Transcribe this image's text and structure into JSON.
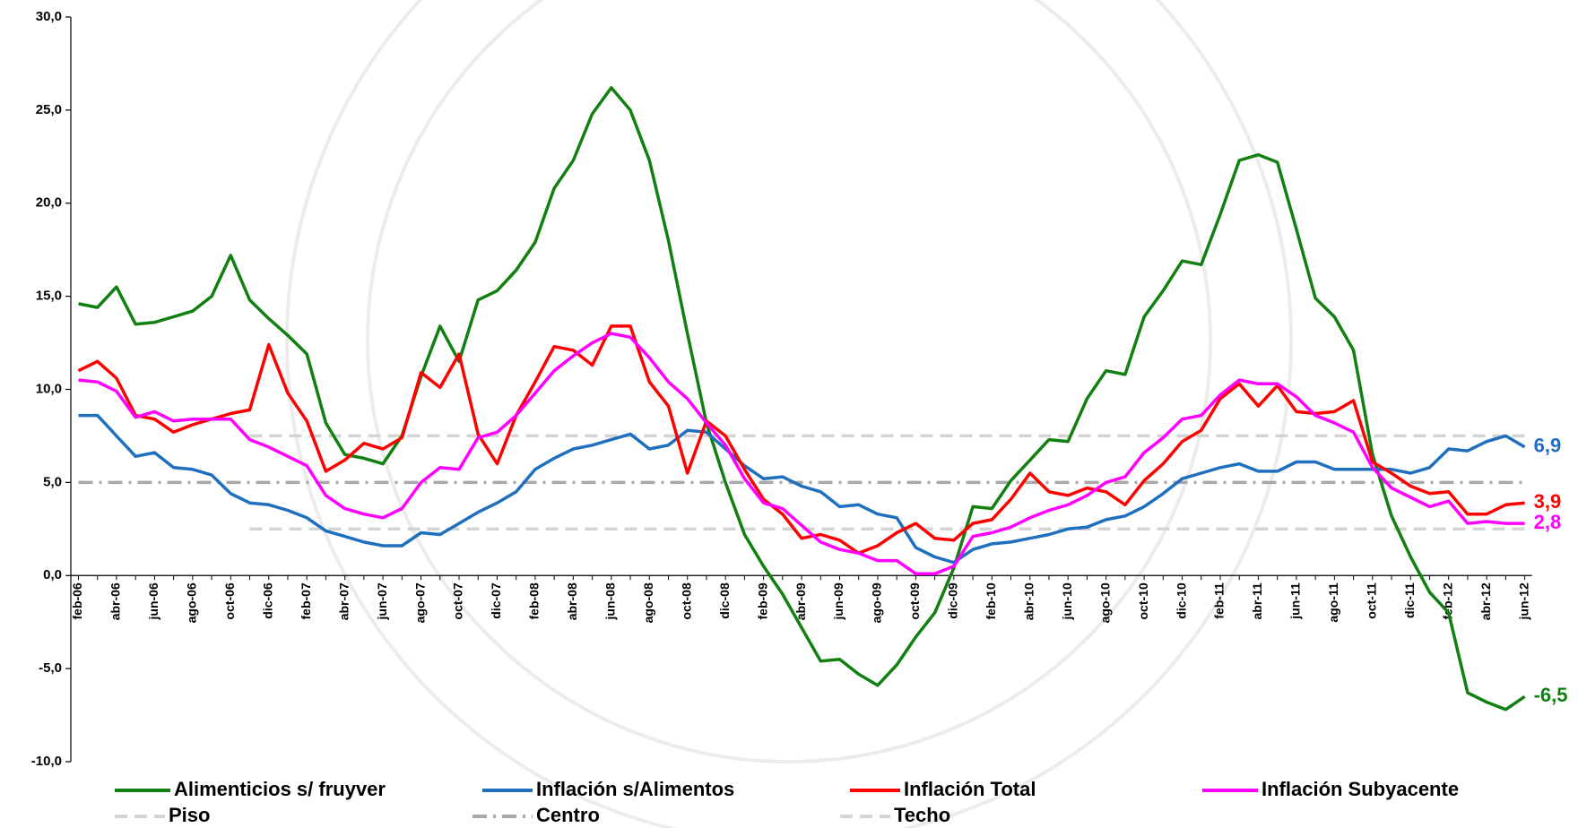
{
  "chart_data": {
    "type": "line",
    "categories": [
      "feb-06",
      null,
      "abr-06",
      null,
      "jun-06",
      null,
      "ago-06",
      null,
      "oct-06",
      null,
      "dic-06",
      null,
      "feb-07",
      null,
      "abr-07",
      null,
      "jun-07",
      null,
      "ago-07",
      null,
      "oct-07",
      null,
      "dic-07",
      null,
      "feb-08",
      null,
      "abr-08",
      null,
      "jun-08",
      null,
      "ago-08",
      null,
      "oct-08",
      null,
      "dic-08",
      null,
      "feb-09",
      null,
      "abr-09",
      null,
      "jun-09",
      null,
      "ago-09",
      null,
      "oct-09",
      null,
      "dic-09",
      null,
      "feb-10",
      null,
      "abr-10",
      null,
      "jun-10",
      null,
      "ago-10",
      null,
      "oct-10",
      null,
      "dic-10",
      null,
      "feb-11",
      null,
      "abr-11",
      null,
      "jun-11",
      null,
      "ago-11",
      null,
      "oct-11",
      null,
      "dic-11",
      null,
      "feb-12",
      null,
      "abr-12",
      null,
      "jun-12"
    ],
    "ylim": [
      -10,
      30
    ],
    "yticks": [
      {
        "value": -10,
        "label": "-10,0"
      },
      {
        "value": -5,
        "label": "-5,0"
      },
      {
        "value": 0,
        "label": "0,0"
      },
      {
        "value": 5,
        "label": "5,0"
      },
      {
        "value": 10,
        "label": "10,0"
      },
      {
        "value": 15,
        "label": "15,0"
      },
      {
        "value": 20,
        "label": "20,0"
      },
      {
        "value": 25,
        "label": "25,0"
      },
      {
        "value": 30,
        "label": "30,0"
      }
    ],
    "grid": false,
    "series": [
      {
        "name": "Alimenticios s/ fruyver",
        "color": "#118011",
        "style": "solid",
        "values": [
          14.6,
          14.4,
          15.5,
          13.5,
          13.6,
          13.9,
          14.2,
          15.0,
          17.2,
          14.8,
          13.8,
          12.9,
          11.9,
          8.2,
          6.5,
          6.3,
          6.0,
          7.5,
          10.7,
          13.4,
          11.5,
          14.8,
          15.3,
          16.4,
          17.9,
          20.8,
          22.3,
          24.8,
          26.2,
          25.0,
          22.3,
          18.0,
          13.0,
          8.2,
          5.0,
          2.2,
          0.5,
          -1.0,
          -2.8,
          -4.6,
          -4.5,
          -5.3,
          -5.9,
          -4.8,
          -3.3,
          -2.0,
          0.4,
          3.7,
          3.6,
          5.1,
          6.2,
          7.3,
          7.2,
          9.5,
          11.0,
          10.8,
          13.9,
          15.3,
          16.9,
          16.7,
          19.4,
          22.3,
          22.6,
          22.2,
          18.6,
          14.9,
          13.9,
          12.1,
          6.5,
          3.2,
          1.0,
          -0.9,
          -2.0,
          -6.3,
          -6.8,
          -7.2,
          -6.5
        ],
        "value_labels": [
          null,
          null,
          null,
          null,
          null,
          null,
          null,
          null,
          null,
          null,
          null,
          null,
          null,
          null,
          null,
          null,
          null,
          null,
          null,
          null,
          null,
          null,
          null,
          null,
          null,
          null,
          null,
          null,
          null,
          null,
          null,
          null,
          null,
          null,
          null,
          null,
          null,
          null,
          null,
          null,
          null,
          null,
          null,
          null,
          null,
          null,
          null,
          null,
          null,
          null,
          null,
          null,
          null,
          null,
          null,
          null,
          null,
          null,
          null,
          null,
          null,
          null,
          null,
          null,
          null,
          null,
          null,
          null,
          null,
          null,
          null,
          null,
          null,
          null,
          null,
          null,
          "-6,5"
        ]
      },
      {
        "name": "Inflación s/Alimentos",
        "color": "#1f6fbf",
        "style": "solid",
        "values": [
          8.6,
          8.6,
          7.5,
          6.4,
          6.6,
          5.8,
          5.7,
          5.4,
          4.4,
          3.9,
          3.8,
          3.5,
          3.1,
          2.4,
          2.1,
          1.8,
          1.6,
          1.6,
          2.3,
          2.2,
          2.8,
          3.4,
          3.9,
          4.5,
          5.7,
          6.3,
          6.8,
          7.0,
          7.3,
          7.6,
          6.8,
          7.0,
          7.8,
          7.7,
          6.8,
          5.9,
          5.2,
          5.3,
          4.8,
          4.5,
          3.7,
          3.8,
          3.3,
          3.1,
          1.5,
          1.0,
          0.7,
          1.4,
          1.7,
          1.8,
          2.0,
          2.2,
          2.5,
          2.6,
          3.0,
          3.2,
          3.7,
          4.4,
          5.2,
          5.5,
          5.8,
          6.0,
          5.6,
          5.6,
          6.1,
          6.1,
          5.7,
          5.7,
          5.7,
          5.7,
          5.5,
          5.8,
          6.8,
          6.7,
          7.2,
          7.5,
          6.9
        ],
        "value_labels": [
          null,
          null,
          null,
          null,
          null,
          null,
          null,
          null,
          null,
          null,
          null,
          null,
          null,
          null,
          null,
          null,
          null,
          null,
          null,
          null,
          null,
          null,
          null,
          null,
          null,
          null,
          null,
          null,
          null,
          null,
          null,
          null,
          null,
          null,
          null,
          null,
          null,
          null,
          null,
          null,
          null,
          null,
          null,
          null,
          null,
          null,
          null,
          null,
          null,
          null,
          null,
          null,
          null,
          null,
          null,
          null,
          null,
          null,
          null,
          null,
          null,
          null,
          null,
          null,
          null,
          null,
          null,
          null,
          null,
          null,
          null,
          null,
          null,
          null,
          null,
          null,
          "6,9"
        ]
      },
      {
        "name": "Inflación Total",
        "color": "#ff0000",
        "style": "solid",
        "values": [
          11.0,
          11.5,
          10.6,
          8.6,
          8.4,
          7.7,
          8.1,
          8.4,
          8.7,
          8.9,
          12.4,
          9.8,
          8.3,
          5.6,
          6.2,
          7.1,
          6.8,
          7.4,
          10.9,
          10.1,
          11.9,
          7.6,
          6.0,
          8.6,
          10.4,
          12.3,
          12.1,
          11.3,
          13.4,
          13.4,
          10.4,
          9.1,
          5.5,
          8.3,
          7.5,
          5.7,
          4.1,
          3.3,
          2.0,
          2.2,
          1.9,
          1.2,
          1.6,
          2.3,
          2.8,
          2.0,
          1.9,
          2.8,
          3.0,
          4.1,
          5.5,
          4.5,
          4.3,
          4.7,
          4.5,
          3.8,
          5.1,
          6.0,
          7.2,
          7.8,
          9.5,
          10.3,
          9.1,
          10.2,
          8.8,
          8.7,
          8.8,
          9.4,
          6.1,
          5.5,
          4.8,
          4.4,
          4.5,
          3.3,
          3.3,
          3.8,
          3.9
        ],
        "value_labels": [
          null,
          null,
          null,
          null,
          null,
          null,
          null,
          null,
          null,
          null,
          null,
          null,
          null,
          null,
          null,
          null,
          null,
          null,
          null,
          null,
          null,
          null,
          null,
          null,
          null,
          null,
          null,
          null,
          null,
          null,
          null,
          null,
          null,
          null,
          null,
          null,
          null,
          null,
          null,
          null,
          null,
          null,
          null,
          null,
          null,
          null,
          null,
          null,
          null,
          null,
          null,
          null,
          null,
          null,
          null,
          null,
          null,
          null,
          null,
          null,
          null,
          null,
          null,
          null,
          null,
          null,
          null,
          null,
          null,
          null,
          null,
          null,
          null,
          null,
          null,
          null,
          "3,9"
        ]
      },
      {
        "name": "Inflación Subyacente",
        "color": "#ff00ff",
        "style": "solid",
        "values": [
          10.5,
          10.4,
          9.9,
          8.5,
          8.8,
          8.3,
          8.4,
          8.4,
          8.4,
          7.3,
          6.9,
          6.4,
          5.9,
          4.3,
          3.6,
          3.3,
          3.1,
          3.6,
          5.0,
          5.8,
          5.7,
          7.4,
          7.7,
          8.6,
          9.8,
          11.0,
          11.8,
          12.5,
          13.0,
          12.8,
          11.7,
          10.4,
          9.5,
          8.2,
          7.0,
          5.2,
          3.9,
          3.6,
          2.7,
          1.8,
          1.4,
          1.2,
          0.8,
          0.8,
          0.1,
          0.1,
          0.5,
          2.1,
          2.3,
          2.6,
          3.1,
          3.5,
          3.8,
          4.3,
          5.0,
          5.3,
          6.6,
          7.4,
          8.4,
          8.6,
          9.7,
          10.5,
          10.3,
          10.3,
          9.6,
          8.6,
          8.2,
          7.7,
          5.8,
          4.7,
          4.2,
          3.7,
          4.0,
          2.8,
          2.9,
          2.8,
          2.8
        ],
        "value_labels": [
          null,
          null,
          null,
          null,
          null,
          null,
          null,
          null,
          null,
          null,
          null,
          null,
          null,
          null,
          null,
          null,
          null,
          null,
          null,
          null,
          null,
          null,
          null,
          null,
          null,
          null,
          null,
          null,
          null,
          null,
          null,
          null,
          null,
          null,
          null,
          null,
          null,
          null,
          null,
          null,
          null,
          null,
          null,
          null,
          null,
          null,
          null,
          null,
          null,
          null,
          null,
          null,
          null,
          null,
          null,
          null,
          null,
          null,
          null,
          null,
          null,
          null,
          null,
          null,
          null,
          null,
          null,
          null,
          null,
          null,
          null,
          null,
          null,
          null,
          null,
          null,
          "2,8"
        ]
      },
      {
        "name": "Piso",
        "color": "#d4d4d4",
        "style": "dashed",
        "values": [
          null,
          null,
          null,
          null,
          null,
          null,
          null,
          null,
          null,
          2.5,
          2.5,
          2.5,
          2.5,
          2.5,
          2.5,
          2.5,
          2.5,
          2.5,
          2.5,
          2.5,
          2.5,
          2.5,
          2.5,
          2.5,
          2.5,
          2.5,
          2.5,
          2.5,
          2.5,
          2.5,
          2.5,
          2.5,
          2.5,
          2.5,
          2.5,
          2.5,
          2.5,
          2.5,
          2.5,
          2.5,
          2.5,
          2.5,
          2.5,
          2.5,
          2.5,
          2.5,
          2.5,
          2.5,
          2.5,
          2.5,
          2.5,
          2.5,
          2.5,
          2.5,
          2.5,
          2.5,
          2.5,
          2.5,
          2.5,
          2.5,
          2.5,
          2.5,
          2.5,
          2.5,
          2.5,
          2.5,
          2.5,
          2.5,
          2.5,
          2.5,
          2.5,
          2.5,
          2.5,
          2.5,
          2.5,
          2.5,
          2.5
        ]
      },
      {
        "name": "Centro",
        "color": "#a8a8a8",
        "style": "dashdot",
        "values": [
          5,
          5,
          5,
          5,
          5,
          5,
          5,
          5,
          5,
          5,
          5,
          5,
          5,
          5,
          5,
          5,
          5,
          5,
          5,
          5,
          5,
          5,
          5,
          5,
          5,
          5,
          5,
          5,
          5,
          5,
          5,
          5,
          5,
          5,
          5,
          5,
          5,
          5,
          5,
          5,
          5,
          5,
          5,
          5,
          5,
          5,
          5,
          5,
          5,
          5,
          5,
          5,
          5,
          5,
          5,
          5,
          5,
          5,
          5,
          5,
          5,
          5,
          5,
          5,
          5,
          5,
          5,
          5,
          5,
          5,
          5,
          5,
          5,
          5,
          5,
          5,
          5
        ]
      },
      {
        "name": "Techo",
        "color": "#d4d4d4",
        "style": "dashed",
        "values": [
          null,
          null,
          null,
          null,
          null,
          null,
          null,
          null,
          null,
          7.5,
          7.5,
          7.5,
          7.5,
          7.5,
          7.5,
          7.5,
          7.5,
          7.5,
          7.5,
          7.5,
          7.5,
          7.5,
          7.5,
          7.5,
          7.5,
          7.5,
          7.5,
          7.5,
          7.5,
          7.5,
          7.5,
          7.5,
          7.5,
          7.5,
          7.5,
          7.5,
          7.5,
          7.5,
          7.5,
          7.5,
          7.5,
          7.5,
          7.5,
          7.5,
          7.5,
          7.5,
          7.5,
          7.5,
          7.5,
          7.5,
          7.5,
          7.5,
          7.5,
          7.5,
          7.5,
          7.5,
          7.5,
          7.5,
          7.5,
          7.5,
          7.5,
          7.5,
          7.5,
          7.5,
          7.5,
          7.5,
          7.5,
          7.5,
          7.5,
          7.5,
          7.5,
          7.5,
          7.5,
          7.5,
          7.5,
          7.5,
          7.5
        ]
      }
    ]
  }
}
